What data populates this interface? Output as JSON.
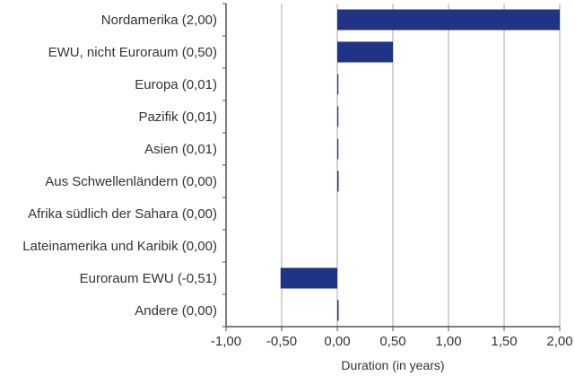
{
  "chart_data": {
    "type": "bar",
    "orientation": "horizontal",
    "categories": [
      "Nordamerika (2,00)",
      "EWU, nicht Euroraum (0,50)",
      "Europa (0,01)",
      "Pazifik (0,01)",
      "Asien (0,01)",
      "Aus Schwellenländern (0,00)",
      "Afrika südlich der Sahara (0,00)",
      "Lateinamerika und Karibik (0,00)",
      "Euroraum EWU (-0,51)",
      "Andere (0,00)"
    ],
    "values": [
      2.0,
      0.5,
      0.01,
      0.01,
      0.01,
      0.003,
      0.0,
      0.0,
      -0.51,
      0.002
    ],
    "xlabel": "Duration (in years)",
    "xlim": [
      -1.0,
      2.0
    ],
    "xticks": [
      -1.0,
      -0.5,
      0.0,
      0.5,
      1.0,
      1.5,
      2.0
    ],
    "xtick_labels": [
      "-1,00",
      "-0,50",
      "0,00",
      "0,50",
      "1,00",
      "1,50",
      "2,00"
    ],
    "grid": true,
    "legend": "none",
    "colors": {
      "bar": "#1f3485",
      "grid": "#d4d4d4",
      "axis": "#555555",
      "text": "#333333"
    }
  }
}
